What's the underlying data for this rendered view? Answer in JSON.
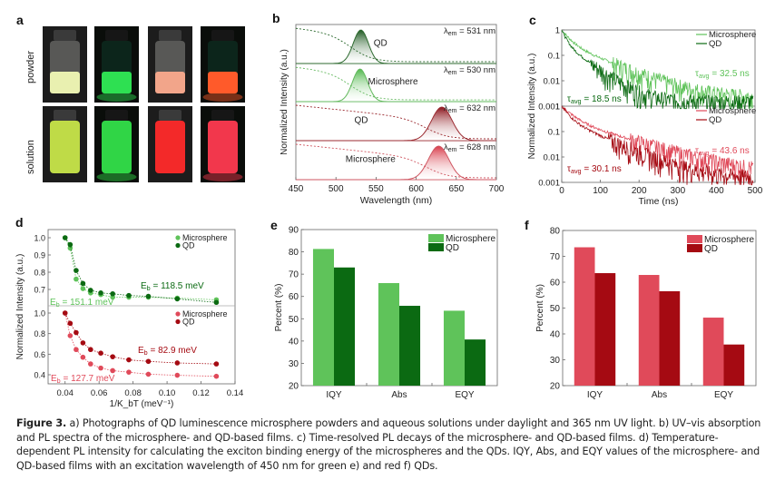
{
  "figure": {
    "caption_label": "Figure 3.",
    "caption_text": " a) Photographs of QD luminescence microsphere powders and aqueous solutions under daylight and 365 nm UV light. b) UV–vis absorption and PL spectra of the microsphere- and QD-based films. c) Time-resolved PL decays of the microsphere- and QD-based films. d) Temperature-dependent PL intensity for calculating the exciton binding energy of the microspheres and the QDs. IQY, Abs, and EQY values of the microsphere- and QD-based films with an excitation wavelength of 450 nm for green e) and red f) QDs."
  },
  "panel_a": {
    "label": "a",
    "row_labels": [
      "powder",
      "solution"
    ],
    "photos": [
      {
        "row": "powder",
        "condition": "daylight",
        "color": "green",
        "glow": "#e9f0b0"
      },
      {
        "row": "powder",
        "condition": "UV",
        "color": "green",
        "glow": "#2ee052"
      },
      {
        "row": "powder",
        "condition": "daylight",
        "color": "red",
        "glow": "#f2a58a"
      },
      {
        "row": "powder",
        "condition": "UV",
        "color": "red",
        "glow": "#ff5a2a"
      },
      {
        "row": "solution",
        "condition": "daylight",
        "color": "green",
        "glow": "#c8e64a"
      },
      {
        "row": "solution",
        "condition": "UV",
        "color": "green",
        "glow": "#33e04a"
      },
      {
        "row": "solution",
        "condition": "daylight",
        "color": "red",
        "glow": "#ff2a2a"
      },
      {
        "row": "solution",
        "condition": "UV",
        "color": "red",
        "glow": "#ff3a50"
      }
    ]
  },
  "colors": {
    "green_light": "#5fc35a",
    "green_dark": "#0b6a12",
    "red_light": "#e04a5a",
    "red_dark": "#a50a12",
    "axis": "#555555",
    "text": "#222222"
  },
  "chart_data": [
    {
      "panel": "b",
      "type": "line",
      "xlabel": "Wavelength (nm)",
      "ylabel": "Normalized Intensity (a.u.)",
      "xlim": [
        450,
        700
      ],
      "xticks": [
        450,
        500,
        550,
        600,
        650,
        700
      ],
      "series": [
        {
          "name": "QD",
          "group": "green",
          "peak_nm": 531,
          "fwhm_nm": 22,
          "annotation": "λem = 531 nm",
          "label": "QD"
        },
        {
          "name": "Microsphere",
          "group": "green",
          "peak_nm": 530,
          "fwhm_nm": 22,
          "annotation": "λem = 530 nm",
          "label": "Microsphere"
        },
        {
          "name": "QD",
          "group": "red",
          "peak_nm": 632,
          "fwhm_nm": 30,
          "annotation": "λem = 632 nm",
          "label": "QD"
        },
        {
          "name": "Microsphere",
          "group": "red",
          "peak_nm": 628,
          "fwhm_nm": 30,
          "annotation": "λem = 628 nm",
          "label": "Microsphere"
        }
      ],
      "note": "solid = PL emission, dashed = UV-vis absorption"
    },
    {
      "panel": "c",
      "type": "line",
      "xlabel": "Time (ns)",
      "ylabel": "Normalized Intensity (a.u.)",
      "xlim": [
        0,
        500
      ],
      "xticks": [
        0,
        100,
        200,
        300,
        400,
        500
      ],
      "yscale": "log",
      "ylim": [
        0.001,
        1
      ],
      "yticks": [
        "0.001",
        "0.01",
        "0.1",
        "1"
      ],
      "subplots": [
        {
          "group": "green",
          "series": [
            {
              "name": "Microsphere",
              "tau_avg_ns": 32.5,
              "annotation": "τavg = 32.5 ns"
            },
            {
              "name": "QD",
              "tau_avg_ns": 18.5,
              "annotation": "τavg = 18.5 ns"
            }
          ]
        },
        {
          "group": "red",
          "series": [
            {
              "name": "Microsphere",
              "tau_avg_ns": 43.6,
              "annotation": "τavg = 43.6 ns"
            },
            {
              "name": "QD",
              "tau_avg_ns": 30.1,
              "annotation": "τavg = 30.1 ns"
            }
          ]
        }
      ]
    },
    {
      "panel": "d",
      "type": "scatter",
      "xlabel": "1/K_bT (meV⁻¹)",
      "ylabel": "Normalized Intensity (a.u.)",
      "xlim": [
        0.03,
        0.14
      ],
      "xticks": [
        "0.04",
        "0.06",
        "0.08",
        "0.10",
        "0.12",
        "0.14"
      ],
      "x": [
        0.04,
        0.043,
        0.0465,
        0.0505,
        0.055,
        0.061,
        0.068,
        0.0775,
        0.089,
        0.106,
        0.129
      ],
      "subplots": [
        {
          "group": "green",
          "ylim": [
            0.62,
            1.03
          ],
          "yticks": [
            "0.7",
            "0.8",
            "0.9",
            "1.0"
          ],
          "series": [
            {
              "name": "Microsphere",
              "values": [
                1.0,
                0.94,
                0.76,
                0.705,
                0.68,
                0.67,
                0.655,
                0.655,
                0.655,
                0.65,
                0.64
              ],
              "annotation": "Eb = 151.1 meV"
            },
            {
              "name": "QD",
              "values": [
                1.0,
                0.96,
                0.81,
                0.735,
                0.695,
                0.68,
                0.675,
                0.665,
                0.66,
                0.645,
                0.625
              ],
              "annotation": "Eb = 118.5 meV"
            }
          ]
        },
        {
          "group": "red",
          "ylim": [
            0.35,
            1.03
          ],
          "yticks": [
            "0.4",
            "0.6",
            "0.8",
            "1.0"
          ],
          "series": [
            {
              "name": "Microsphere",
              "values": [
                1.0,
                0.78,
                0.645,
                0.57,
                0.505,
                0.465,
                0.44,
                0.425,
                0.405,
                0.395,
                0.385
              ],
              "annotation": "Eb = 127.7 meV"
            },
            {
              "name": "QD",
              "values": [
                1.0,
                0.9,
                0.81,
                0.71,
                0.645,
                0.61,
                0.575,
                0.545,
                0.53,
                0.515,
                0.505
              ],
              "annotation": "Eb = 82.9 meV"
            }
          ]
        }
      ]
    },
    {
      "panel": "e",
      "type": "bar",
      "categories": [
        "IQY",
        "Abs",
        "EQY"
      ],
      "ylabel": "Percent (%)",
      "ylim": [
        20,
        90
      ],
      "yticks": [
        20,
        30,
        40,
        50,
        60,
        70,
        80,
        90
      ],
      "series": [
        {
          "name": "Microsphere",
          "values": [
            81.3,
            66.0,
            53.6
          ]
        },
        {
          "name": "QD",
          "values": [
            73.0,
            55.8,
            40.7
          ]
        }
      ],
      "legend": "top-right"
    },
    {
      "panel": "f",
      "type": "bar",
      "categories": [
        "IQY",
        "Abs",
        "EQY"
      ],
      "ylabel": "Percent (%)",
      "ylim": [
        20,
        80
      ],
      "yticks": [
        20,
        30,
        40,
        50,
        60,
        70,
        80
      ],
      "series": [
        {
          "name": "Microsphere",
          "values": [
            73.5,
            62.8,
            46.3
          ]
        },
        {
          "name": "QD",
          "values": [
            63.5,
            56.5,
            35.9
          ]
        }
      ],
      "legend": "top-right"
    }
  ]
}
